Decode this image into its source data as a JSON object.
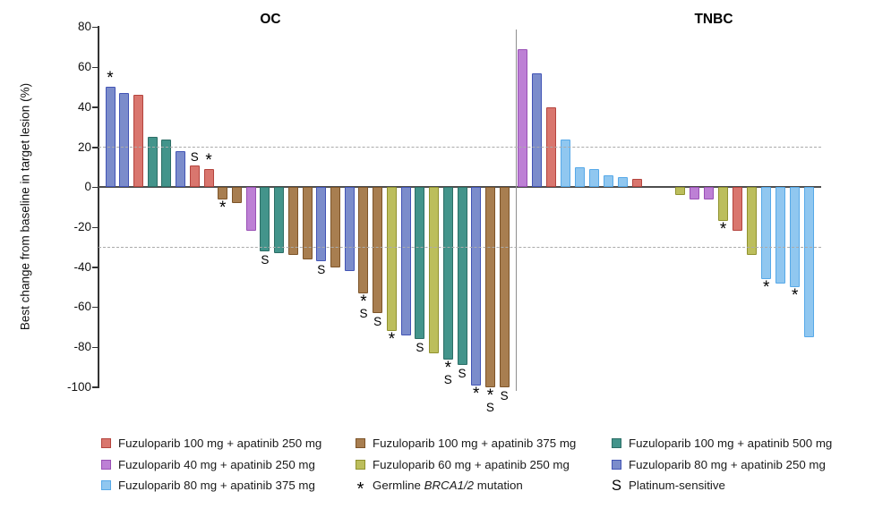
{
  "figure": {
    "y_axis_label": "Best change from baseline in target lesion (%)"
  },
  "chart_data": {
    "type": "bar",
    "subtype": "waterfall",
    "title": "",
    "ylabel": "Best change from baseline in target lesion (%)",
    "ylim": [
      -100,
      80
    ],
    "yticks": [
      80,
      60,
      40,
      20,
      0,
      -20,
      -40,
      -60,
      -80,
      -100
    ],
    "reference_lines": [
      20,
      -30
    ],
    "grid": "dashed-reference-only",
    "mark_meanings": {
      "*": "Germline BRCA1/2 mutation",
      "S": "Platinum-sensitive"
    },
    "groups": {
      "red": "Fuzuloparib 100 mg + apatinib 250 mg",
      "brown": "Fuzuloparib 100 mg + apatinib 375 mg",
      "teal": "Fuzuloparib 100 mg + apatinib 500 mg",
      "orchid": "Fuzuloparib 40 mg + apatinib 250 mg",
      "olive": "Fuzuloparib 60 mg + apatinib 250 mg",
      "blueviolet": "Fuzuloparib 80 mg + apatinib 250 mg",
      "lightblue": "Fuzuloparib 80 mg + apatinib 375 mg"
    },
    "colors": {
      "red": {
        "fill": "#D9766E",
        "border": "#B4443E"
      },
      "brown": {
        "fill": "#A87E50",
        "border": "#7D5429"
      },
      "teal": {
        "fill": "#43948B",
        "border": "#2C6E66"
      },
      "orchid": {
        "fill": "#BD80D5",
        "border": "#9950B5"
      },
      "olive": {
        "fill": "#BCBE5C",
        "border": "#90922F"
      },
      "blueviolet": {
        "fill": "#7B8CCB",
        "border": "#4254B5"
      },
      "lightblue": {
        "fill": "#90C7F0",
        "border": "#57A9E8"
      }
    },
    "panels": [
      {
        "title": "OC",
        "bars": [
          {
            "value": 50,
            "group": "blueviolet",
            "mark": "*"
          },
          {
            "value": 47,
            "group": "blueviolet"
          },
          {
            "value": 46,
            "group": "red"
          },
          {
            "value": 25,
            "group": "teal"
          },
          {
            "value": 24,
            "group": "teal"
          },
          {
            "value": 18,
            "group": "blueviolet"
          },
          {
            "value": 11,
            "group": "red",
            "mark": "S"
          },
          {
            "value": 9,
            "group": "red",
            "mark": "*"
          },
          {
            "value": -6,
            "group": "brown",
            "mark": "*"
          },
          {
            "value": -8,
            "group": "brown"
          },
          {
            "value": -22,
            "group": "orchid"
          },
          {
            "value": -32,
            "group": "teal",
            "mark": "S"
          },
          {
            "value": -33,
            "group": "teal"
          },
          {
            "value": -34,
            "group": "brown"
          },
          {
            "value": -36,
            "group": "brown"
          },
          {
            "value": -37,
            "group": "blueviolet",
            "mark": "S"
          },
          {
            "value": -40,
            "group": "brown"
          },
          {
            "value": -42,
            "group": "blueviolet"
          },
          {
            "value": -53,
            "group": "brown",
            "mark": "*S"
          },
          {
            "value": -63,
            "group": "brown",
            "mark": "S"
          },
          {
            "value": -72,
            "group": "olive",
            "mark": "*"
          },
          {
            "value": -74,
            "group": "blueviolet"
          },
          {
            "value": -76,
            "group": "teal",
            "mark": "S"
          },
          {
            "value": -83,
            "group": "olive"
          },
          {
            "value": -86,
            "group": "teal",
            "mark": "*S"
          },
          {
            "value": -89,
            "group": "teal",
            "mark": "S"
          },
          {
            "value": -99,
            "group": "blueviolet",
            "mark": "*"
          },
          {
            "value": -100,
            "group": "brown",
            "mark": "*S"
          },
          {
            "value": -100,
            "group": "brown",
            "mark": "S"
          }
        ]
      },
      {
        "title": "TNBC",
        "gap_after_index": 8,
        "gap_slots": 2,
        "bars": [
          {
            "value": 69,
            "group": "orchid"
          },
          {
            "value": 57,
            "group": "blueviolet"
          },
          {
            "value": 40,
            "group": "red"
          },
          {
            "value": 24,
            "group": "lightblue"
          },
          {
            "value": 10,
            "group": "lightblue"
          },
          {
            "value": 9,
            "group": "lightblue"
          },
          {
            "value": 6,
            "group": "lightblue"
          },
          {
            "value": 5,
            "group": "lightblue"
          },
          {
            "value": 4,
            "group": "red"
          },
          {
            "value": -4,
            "group": "olive"
          },
          {
            "value": -6,
            "group": "orchid"
          },
          {
            "value": -6,
            "group": "orchid"
          },
          {
            "value": -17,
            "group": "olive",
            "mark": "*"
          },
          {
            "value": -22,
            "group": "red"
          },
          {
            "value": -34,
            "group": "olive"
          },
          {
            "value": -46,
            "group": "lightblue",
            "mark": "*"
          },
          {
            "value": -48,
            "group": "lightblue"
          },
          {
            "value": -50,
            "group": "lightblue",
            "mark": "*"
          },
          {
            "value": -75,
            "group": "lightblue"
          }
        ]
      }
    ]
  },
  "legend": {
    "columns": [
      {
        "entries": [
          {
            "swatch": "red",
            "parts": [
              {
                "t": "Fuzuloparib 100 mg + apatinib 250 mg"
              }
            ]
          },
          {
            "swatch": "orchid",
            "parts": [
              {
                "t": "Fuzuloparib 40 mg + apatinib 250 mg"
              }
            ]
          },
          {
            "swatch": "lightblue",
            "parts": [
              {
                "t": "Fuzuloparib 80 mg + apatinib 375 mg"
              }
            ]
          }
        ]
      },
      {
        "entries": [
          {
            "swatch": "brown",
            "parts": [
              {
                "t": "Fuzuloparib 100 mg + apatinib 375 mg"
              }
            ]
          },
          {
            "swatch": "olive",
            "parts": [
              {
                "t": "Fuzuloparib 60 mg + apatinib 250 mg"
              }
            ]
          },
          {
            "symbol": "*",
            "parts": [
              {
                "t": "Germline "
              },
              {
                "t": "BRCA1/2",
                "italic": true
              },
              {
                "t": " mutation"
              }
            ]
          }
        ]
      },
      {
        "entries": [
          {
            "swatch": "teal",
            "parts": [
              {
                "t": "Fuzuloparib 100 mg + apatinib 500 mg"
              }
            ]
          },
          {
            "swatch": "blueviolet",
            "parts": [
              {
                "t": "Fuzuloparib 80 mg + apatinib 250 mg"
              }
            ]
          },
          {
            "symbol": "S",
            "parts": [
              {
                "t": "Platinum-sensitive"
              }
            ]
          }
        ]
      }
    ]
  }
}
